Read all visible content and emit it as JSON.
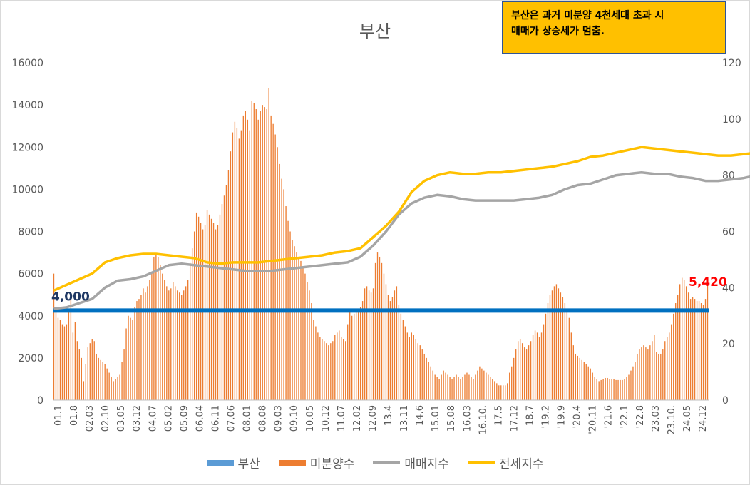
{
  "chart_data": {
    "type": "bar",
    "title": "부산",
    "note_lines": [
      "부산은 과거 미분양 4천세대 초과 시",
      "매매가 상승세가 멈춤."
    ],
    "left_ylim": [
      0,
      16000
    ],
    "left_yticks": [
      "16000",
      "14000",
      "12000",
      "10000",
      "8000",
      "6000",
      "4000",
      "2000",
      "0"
    ],
    "right_ylim": [
      0,
      120
    ],
    "right_yticks": [
      "120",
      "100",
      "80",
      "60",
      "40",
      "20",
      "0"
    ],
    "x_labels": [
      "01.1",
      "01.8",
      "02.03",
      "02.10",
      "03.05",
      "03.12",
      "04.07",
      "05.02",
      "05.09",
      "06.04",
      "06.11",
      "07.06",
      "08.01",
      "08.08",
      "09.03",
      "09.10",
      "10.05",
      "10.12",
      "11.07",
      "12.02",
      "12.09",
      "13.4",
      "13.11",
      "14.6",
      "15.01",
      "15.08",
      "16.03",
      "16.10.",
      "17.5",
      "17.12",
      "18.7",
      "'19.2",
      "'19.9",
      "'20.4",
      "'20.11",
      "'21.6",
      "'22.1",
      "'22.8",
      "23.03",
      "23.10.",
      "24.05",
      "24.12"
    ],
    "series": [
      {
        "name": "부산",
        "type": "threshold",
        "axis": "left",
        "value": 4250,
        "color": "#0070c0"
      },
      {
        "name": "미분양수",
        "type": "bar",
        "axis": "left",
        "color": "#ed7d31",
        "values": [
          6000,
          4200,
          3900,
          3800,
          3600,
          3500,
          3600,
          4200,
          5000,
          3200,
          3700,
          2800,
          2400,
          2000,
          900,
          1700,
          2500,
          2700,
          2900,
          2800,
          2200,
          2000,
          1900,
          1800,
          1700,
          1500,
          1300,
          1100,
          900,
          1000,
          1100,
          1200,
          1800,
          2400,
          3400,
          4000,
          3900,
          3800,
          4400,
          4700,
          4800,
          5000,
          5300,
          5100,
          5400,
          5700,
          6000,
          6800,
          6900,
          6800,
          6400,
          6000,
          5700,
          5400,
          5200,
          5300,
          5600,
          5400,
          5200,
          5100,
          5000,
          5200,
          5400,
          5700,
          6500,
          7200,
          8000,
          8900,
          8700,
          8400,
          8100,
          8300,
          9000,
          8800,
          8600,
          8400,
          8100,
          8300,
          8800,
          9300,
          9700,
          10200,
          10900,
          11800,
          12700,
          13200,
          12900,
          12400,
          12800,
          13500,
          13700,
          13300,
          12800,
          14200,
          14100,
          13800,
          13300,
          13700,
          14000,
          13900,
          13800,
          14800,
          13500,
          13100,
          12600,
          12000,
          11200,
          10500,
          10000,
          9200,
          8500,
          8000,
          7600,
          7300,
          7000,
          6800,
          6600,
          6300,
          6000,
          5600,
          5200,
          4600,
          3800,
          3500,
          3200,
          3000,
          2900,
          2800,
          2700,
          2600,
          2700,
          2800,
          3100,
          3200,
          3300,
          3000,
          2900,
          2800,
          3600,
          4200,
          4000,
          4100,
          4200,
          4300,
          4400,
          4700,
          5300,
          5400,
          5200,
          5100,
          5300,
          6500,
          7000,
          6800,
          6500,
          6000,
          5500,
          5000,
          4700,
          4900,
          5200,
          5400,
          4500,
          4100,
          3800,
          3500,
          3200,
          3000,
          3200,
          3100,
          2900,
          2700,
          2600,
          2400,
          2200,
          2000,
          1800,
          1600,
          1400,
          1200,
          1100,
          1000,
          1200,
          1400,
          1300,
          1200,
          1100,
          1000,
          1100,
          1200,
          1100,
          1000,
          1100,
          1200,
          1300,
          1200,
          1100,
          1000,
          1200,
          1400,
          1600,
          1500,
          1400,
          1300,
          1200,
          1100,
          1000,
          900,
          800,
          700,
          700,
          700,
          700,
          800,
          1300,
          1600,
          2000,
          2400,
          2800,
          2900,
          2700,
          2500,
          2400,
          2600,
          2800,
          3100,
          3300,
          3200,
          3000,
          3200,
          3600,
          4100,
          4600,
          5000,
          5200,
          5400,
          5500,
          5300,
          5100,
          4900,
          4600,
          4300,
          3900,
          3200,
          2600,
          2200,
          2100,
          2000,
          1900,
          1800,
          1700,
          1600,
          1500,
          1300,
          1100,
          1000,
          900,
          950,
          1000,
          1050,
          1050,
          1000,
          1000,
          1000,
          950,
          950,
          950,
          950,
          1000,
          1100,
          1200,
          1400,
          1600,
          1800,
          2200,
          2400,
          2500,
          2600,
          2500,
          2400,
          2600,
          2800,
          3100,
          2300,
          2200,
          2200,
          2400,
          2800,
          3000,
          3200,
          3600,
          4100,
          4600,
          5000,
          5500,
          5800,
          5700,
          5400,
          5100,
          4800,
          4900,
          4800,
          4700,
          4700,
          4600,
          4500,
          4800,
          5420
        ]
      },
      {
        "name": "매매지수",
        "type": "line",
        "axis": "right",
        "color": "#a5a5a5",
        "points": [
          [
            0,
            32.5
          ],
          [
            6,
            33
          ],
          [
            12,
            34.5
          ],
          [
            18,
            36
          ],
          [
            24,
            40
          ],
          [
            30,
            42.5
          ],
          [
            36,
            43
          ],
          [
            42,
            44
          ],
          [
            48,
            46
          ],
          [
            54,
            48
          ],
          [
            60,
            48.5
          ],
          [
            66,
            48
          ],
          [
            72,
            47.5
          ],
          [
            78,
            47
          ],
          [
            84,
            46.5
          ],
          [
            90,
            46
          ],
          [
            96,
            46
          ],
          [
            102,
            46
          ],
          [
            108,
            46.5
          ],
          [
            114,
            47
          ],
          [
            120,
            47.5
          ],
          [
            126,
            48
          ],
          [
            132,
            48.5
          ],
          [
            138,
            49
          ],
          [
            144,
            51
          ],
          [
            150,
            55
          ],
          [
            156,
            60
          ],
          [
            162,
            66
          ],
          [
            168,
            70
          ],
          [
            174,
            72
          ],
          [
            180,
            73
          ],
          [
            186,
            72.5
          ],
          [
            192,
            71.5
          ],
          [
            198,
            71
          ],
          [
            204,
            71
          ],
          [
            210,
            71
          ],
          [
            216,
            71
          ],
          [
            222,
            71.5
          ],
          [
            228,
            72
          ],
          [
            234,
            73
          ],
          [
            240,
            75
          ],
          [
            246,
            76.5
          ],
          [
            252,
            77
          ],
          [
            258,
            78.5
          ],
          [
            264,
            80
          ],
          [
            270,
            80.5
          ],
          [
            276,
            81
          ],
          [
            282,
            80.5
          ],
          [
            288,
            80.5
          ],
          [
            294,
            79.5
          ],
          [
            300,
            79
          ],
          [
            306,
            78
          ],
          [
            312,
            78
          ],
          [
            318,
            78.5
          ],
          [
            324,
            79
          ],
          [
            330,
            80
          ],
          [
            336,
            86
          ],
          [
            342,
            91
          ],
          [
            348,
            97
          ],
          [
            354,
            99.5
          ],
          [
            360,
            100.5
          ],
          [
            364,
            100.5
          ],
          [
            370,
            95
          ],
          [
            376,
            92
          ],
          [
            382,
            91
          ],
          [
            388,
            90
          ],
          [
            394,
            89
          ],
          [
            400,
            88
          ],
          [
            406,
            87.5
          ],
          [
            412,
            86.5
          ],
          [
            418,
            85.5
          ]
        ]
      },
      {
        "name": "전세지수",
        "type": "line",
        "axis": "right",
        "color": "#ffc000",
        "points": [
          [
            0,
            39
          ],
          [
            6,
            41
          ],
          [
            12,
            43
          ],
          [
            18,
            45
          ],
          [
            24,
            49
          ],
          [
            30,
            50.5
          ],
          [
            36,
            51.5
          ],
          [
            42,
            52
          ],
          [
            48,
            52
          ],
          [
            54,
            51.5
          ],
          [
            60,
            51
          ],
          [
            66,
            50.5
          ],
          [
            72,
            49
          ],
          [
            78,
            48.5
          ],
          [
            84,
            49
          ],
          [
            90,
            49
          ],
          [
            96,
            49
          ],
          [
            102,
            49.5
          ],
          [
            108,
            50
          ],
          [
            114,
            50.5
          ],
          [
            120,
            51
          ],
          [
            126,
            51.5
          ],
          [
            132,
            52.5
          ],
          [
            138,
            53
          ],
          [
            144,
            54
          ],
          [
            150,
            58
          ],
          [
            156,
            62
          ],
          [
            162,
            67
          ],
          [
            168,
            74
          ],
          [
            174,
            78
          ],
          [
            180,
            80
          ],
          [
            186,
            81
          ],
          [
            192,
            80.5
          ],
          [
            198,
            80.5
          ],
          [
            204,
            81
          ],
          [
            210,
            81
          ],
          [
            216,
            81.5
          ],
          [
            222,
            82
          ],
          [
            228,
            82.5
          ],
          [
            234,
            83
          ],
          [
            240,
            84
          ],
          [
            246,
            85
          ],
          [
            252,
            86.5
          ],
          [
            258,
            87
          ],
          [
            264,
            88
          ],
          [
            270,
            89
          ],
          [
            276,
            90
          ],
          [
            282,
            89.5
          ],
          [
            288,
            89
          ],
          [
            294,
            88.5
          ],
          [
            300,
            88
          ],
          [
            306,
            87.5
          ],
          [
            312,
            87
          ],
          [
            318,
            87
          ],
          [
            324,
            87.5
          ],
          [
            330,
            88
          ],
          [
            336,
            92
          ],
          [
            342,
            95
          ],
          [
            348,
            98
          ],
          [
            354,
            100.5
          ],
          [
            360,
            101.5
          ],
          [
            364,
            100.5
          ],
          [
            370,
            93
          ],
          [
            376,
            90
          ],
          [
            382,
            89
          ],
          [
            388,
            88.5
          ],
          [
            394,
            88
          ],
          [
            400,
            88
          ],
          [
            406,
            88
          ],
          [
            412,
            88.5
          ],
          [
            418,
            88.5
          ]
        ]
      }
    ],
    "annotations": [
      {
        "text": "4,000",
        "color": "#1f3864"
      },
      {
        "text": "5,420",
        "color": "#ff0000"
      }
    ],
    "grid": false,
    "legend": "bottom"
  },
  "legend_items": [
    {
      "name": "부산",
      "color": "#5b9bd5",
      "kind": "bar"
    },
    {
      "name": "미분양수",
      "color": "#ed7d31",
      "kind": "bar"
    },
    {
      "name": "매매지수",
      "color": "#a5a5a5",
      "kind": "line"
    },
    {
      "name": "전세지수",
      "color": "#ffc000",
      "kind": "line"
    }
  ]
}
